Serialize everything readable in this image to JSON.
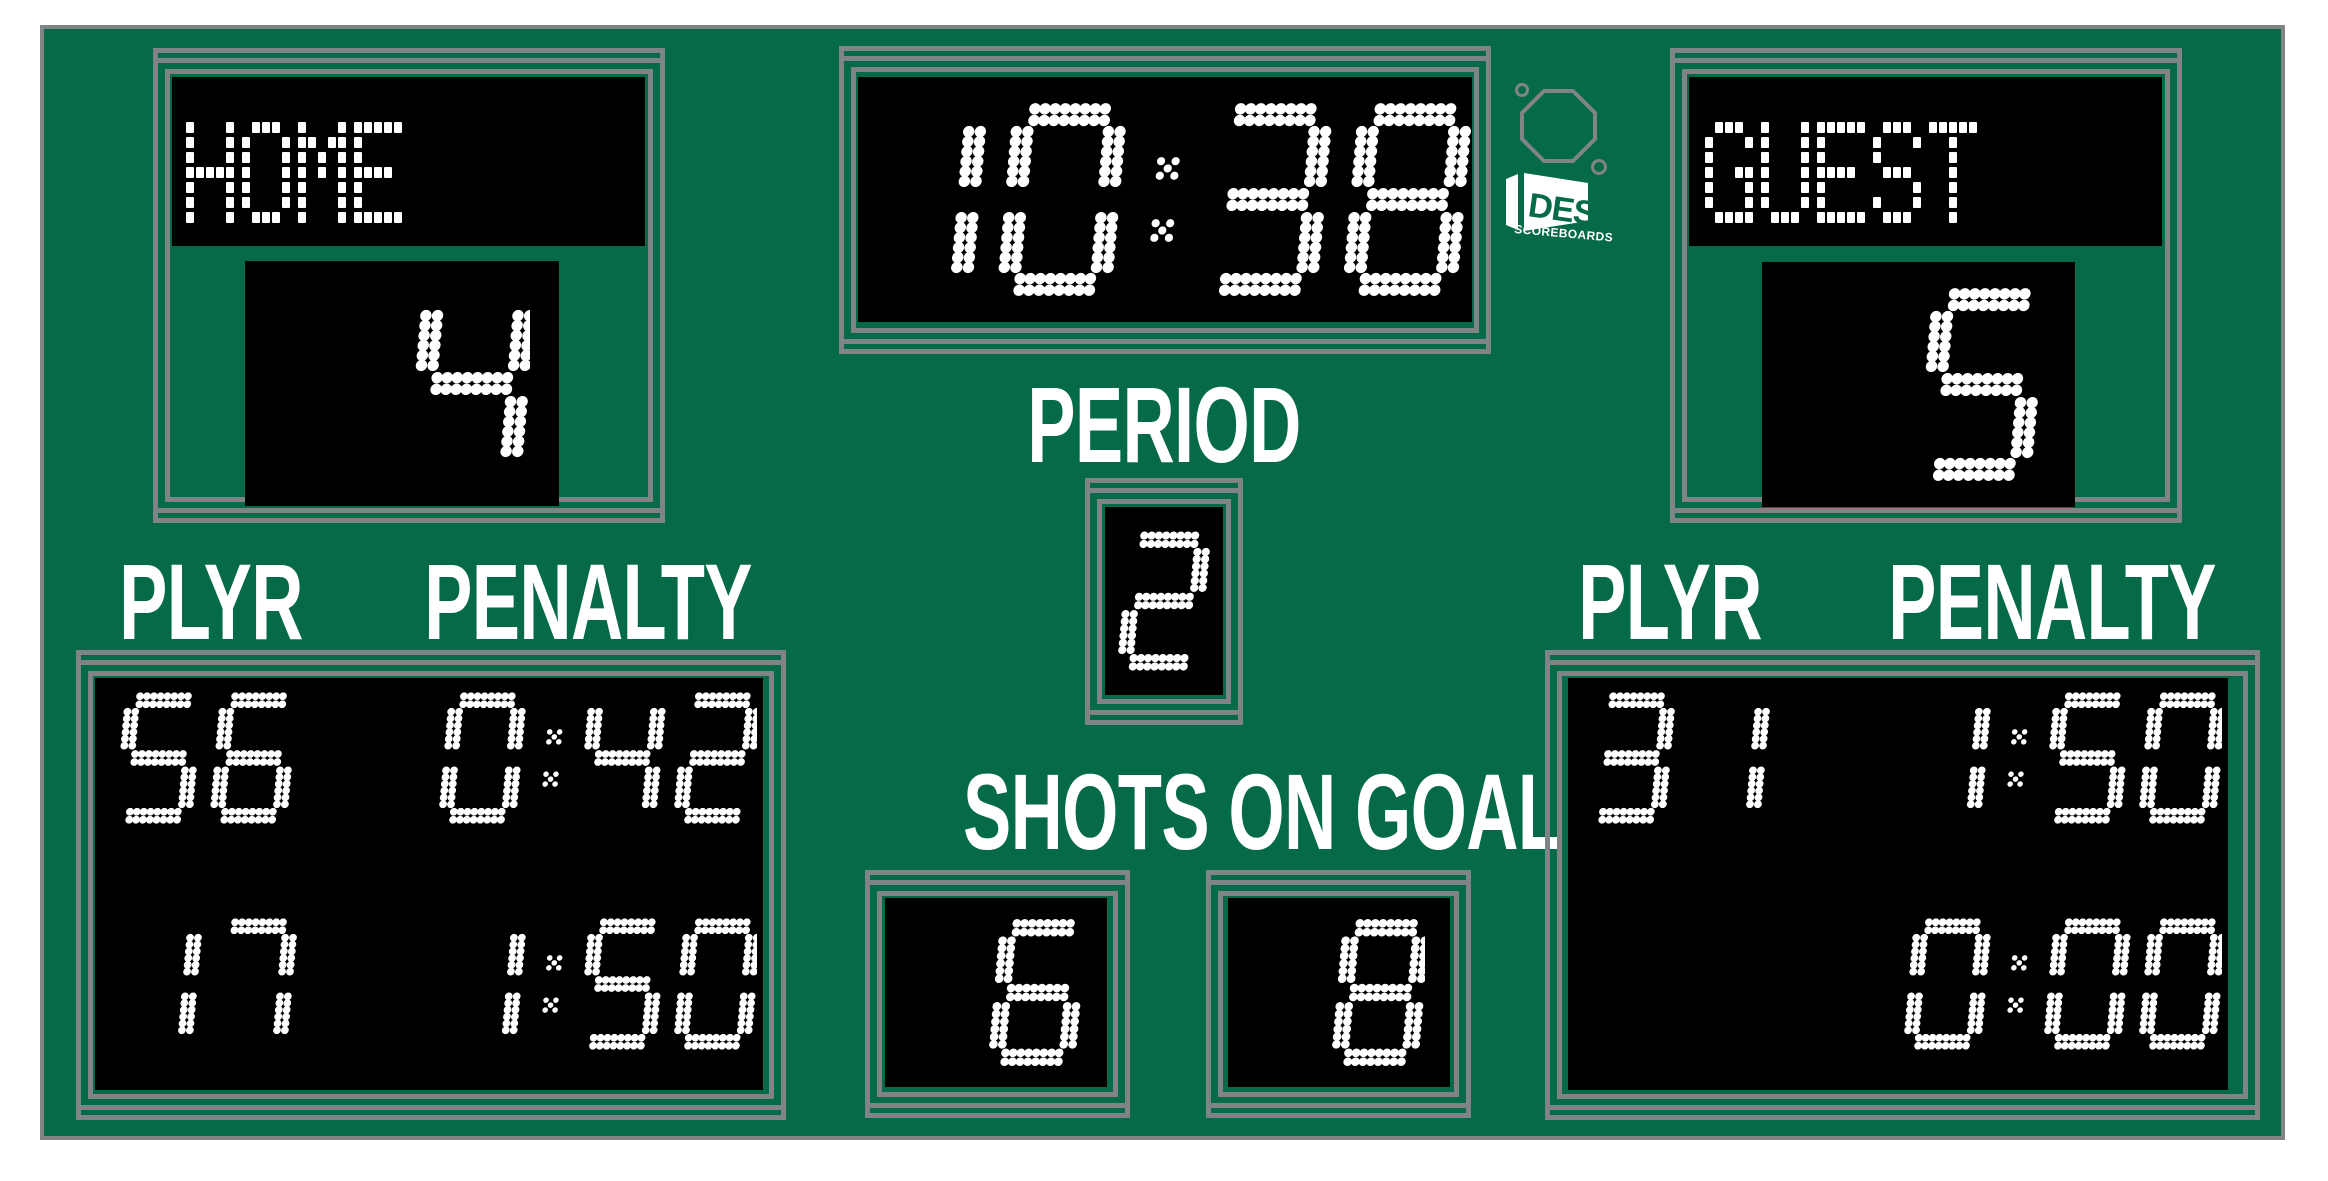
{
  "colors": {
    "green": "#046a48",
    "gray": "#808486",
    "panel": "#000000",
    "led": "#ffffff"
  },
  "home": {
    "label": "HOME",
    "score": "4"
  },
  "guest": {
    "label": "GUEST",
    "score": "5"
  },
  "clock": "10:38",
  "period": {
    "label": "PERIOD",
    "value": "2"
  },
  "shots": {
    "label": "SHOTS ON GOAL",
    "home": "6",
    "guest": "8"
  },
  "left_penalty": {
    "plyr_label": "PLYR",
    "penalty_label": "PENALTY",
    "rows": [
      {
        "player": "56",
        "time": "0:42"
      },
      {
        "player": "17",
        "time": "1:50"
      }
    ]
  },
  "right_penalty": {
    "plyr_label": "PLYR",
    "penalty_label": "PENALTY",
    "rows": [
      {
        "player": "31",
        "time": "1:50"
      },
      {
        "player": "",
        "time": "0:00"
      }
    ]
  },
  "logo": {
    "brand": "DES",
    "tagline": "SCOREBOARDS"
  }
}
